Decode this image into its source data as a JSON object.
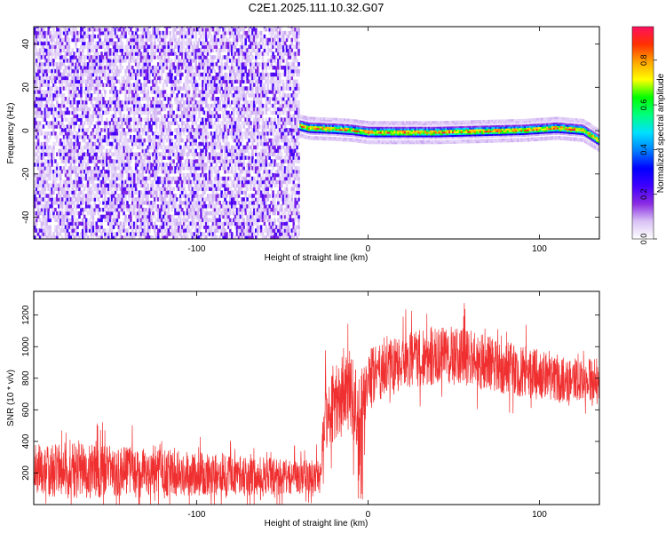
{
  "figure": {
    "title": "C2E1.2025.111.10.32.G07"
  },
  "chart_data": [
    {
      "type": "heatmap",
      "title": "C2E1.2025.111.10.32.G07",
      "xlabel": "Height of straight line (km)",
      "ylabel": "Frequency (Hz)",
      "xlim": [
        -195,
        135
      ],
      "ylim": [
        -50,
        48
      ],
      "xticks": [
        -100,
        0,
        100
      ],
      "yticks": [
        -40,
        -20,
        0,
        20,
        40
      ],
      "colorbar": {
        "label": "Normalized spectral amplitude",
        "range": [
          0,
          0.95
        ],
        "ticks": [
          0,
          0.2,
          0.4,
          0.6,
          0.8
        ],
        "colors": [
          "#ffffff",
          "#d9c2f5",
          "#8a2be2",
          "#3f00ff",
          "#0000ff",
          "#0080ff",
          "#00e0ff",
          "#00ff80",
          "#00ff00",
          "#ffff00",
          "#ffa500",
          "#ff3000",
          "#ff1060"
        ]
      },
      "regions": [
        {
          "name": "noise",
          "x_range": [
            -195,
            -40
          ],
          "freq_range": [
            -50,
            48
          ],
          "amplitude": [
            0.05,
            0.3
          ]
        },
        {
          "name": "signal",
          "x_range": [
            -40,
            135
          ],
          "freq_track": [
            [
              -40,
              2
            ],
            [
              -35,
              1
            ],
            [
              -20,
              0.5
            ],
            [
              -10,
              0
            ],
            [
              0,
              -1
            ],
            [
              40,
              -1
            ],
            [
              90,
              0
            ],
            [
              110,
              1
            ],
            [
              125,
              0
            ],
            [
              135,
              -5
            ]
          ],
          "amplitude": [
            0.3,
            0.95
          ]
        }
      ]
    },
    {
      "type": "line",
      "xlabel": "Height of straight line (km)",
      "ylabel": "SNR (10 * v/v)",
      "xlim": [
        -195,
        135
      ],
      "ylim": [
        0,
        1350
      ],
      "xticks": [
        -100,
        0,
        100
      ],
      "yticks": [
        200,
        400,
        600,
        800,
        1000,
        1200
      ],
      "color": "#f03030",
      "envelope": {
        "x": [
          -195,
          -180,
          -160,
          -140,
          -120,
          -100,
          -80,
          -60,
          -40,
          -28,
          -25,
          -20,
          -10,
          -5,
          0,
          20,
          40,
          60,
          80,
          100,
          120,
          135
        ],
        "mean": [
          220,
          215,
          210,
          205,
          200,
          195,
          185,
          180,
          175,
          175,
          560,
          650,
          720,
          500,
          800,
          900,
          950,
          930,
          870,
          820,
          780,
          770
        ],
        "spread": [
          160,
          180,
          170,
          160,
          150,
          140,
          130,
          120,
          110,
          110,
          220,
          250,
          260,
          300,
          180,
          180,
          190,
          180,
          170,
          160,
          150,
          150
        ]
      }
    }
  ]
}
